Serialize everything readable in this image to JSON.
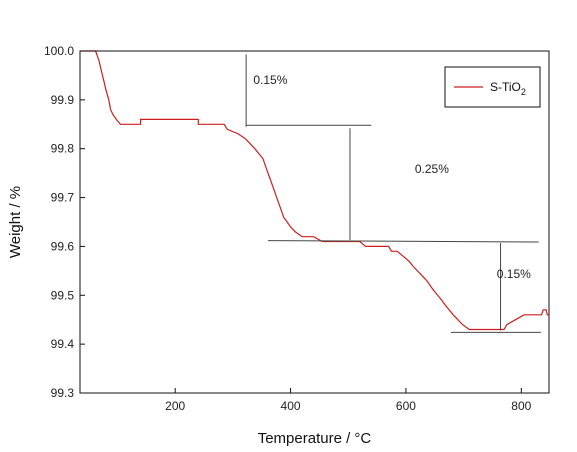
{
  "chart_data": {
    "type": "line",
    "xlabel": "Temperature / °C",
    "ylabel": "Weight  /  %",
    "xlim": [
      35,
      848
    ],
    "ylim": [
      99.3,
      100.0
    ],
    "x_ticks": [
      "200",
      "400",
      "600",
      "800"
    ],
    "y_ticks": [
      "100.0",
      "99.9",
      "99.8",
      "99.7",
      "99.6",
      "99.5",
      "99.4",
      "99.3"
    ],
    "x_tick_values": [
      200,
      400,
      600,
      800
    ],
    "y_tick_values": [
      100.0,
      99.9,
      99.8,
      99.7,
      99.6,
      99.5,
      99.4,
      99.3
    ],
    "grid": false,
    "legend": {
      "position": "top-right",
      "entries": [
        {
          "prefix": "S-TiO",
          "sub": "2"
        }
      ]
    },
    "series": [
      {
        "name": "S-TiO2",
        "color": "#cc1f1f",
        "points": [
          [
            35,
            100.0
          ],
          [
            62,
            100.0
          ],
          [
            68,
            99.98
          ],
          [
            72,
            99.96
          ],
          [
            76,
            99.94
          ],
          [
            80,
            99.92
          ],
          [
            85,
            99.9
          ],
          [
            88,
            99.88
          ],
          [
            92,
            99.87
          ],
          [
            98,
            99.86
          ],
          [
            105,
            99.85
          ],
          [
            140,
            99.85
          ],
          [
            140,
            99.86
          ],
          [
            240,
            99.86
          ],
          [
            240,
            99.85
          ],
          [
            285,
            99.85
          ],
          [
            290,
            99.84
          ],
          [
            310,
            99.83
          ],
          [
            322,
            99.82
          ],
          [
            330,
            99.81
          ],
          [
            338,
            99.8
          ],
          [
            345,
            99.79
          ],
          [
            352,
            99.78
          ],
          [
            358,
            99.76
          ],
          [
            364,
            99.74
          ],
          [
            370,
            99.72
          ],
          [
            376,
            99.7
          ],
          [
            382,
            99.68
          ],
          [
            388,
            99.66
          ],
          [
            394,
            99.65
          ],
          [
            400,
            99.64
          ],
          [
            408,
            99.63
          ],
          [
            420,
            99.62
          ],
          [
            440,
            99.62
          ],
          [
            455,
            99.61
          ],
          [
            520,
            99.61
          ],
          [
            530,
            99.6
          ],
          [
            570,
            99.6
          ],
          [
            575,
            99.59
          ],
          [
            585,
            99.59
          ],
          [
            595,
            99.58
          ],
          [
            605,
            99.57
          ],
          [
            612,
            99.56
          ],
          [
            620,
            99.55
          ],
          [
            628,
            99.54
          ],
          [
            636,
            99.53
          ],
          [
            642,
            99.52
          ],
          [
            648,
            99.51
          ],
          [
            655,
            99.5
          ],
          [
            662,
            99.49
          ],
          [
            668,
            99.48
          ],
          [
            675,
            99.47
          ],
          [
            682,
            99.46
          ],
          [
            690,
            99.45
          ],
          [
            698,
            99.44
          ],
          [
            710,
            99.43
          ],
          [
            770,
            99.43
          ],
          [
            775,
            99.44
          ],
          [
            790,
            99.45
          ],
          [
            805,
            99.46
          ],
          [
            835,
            99.46
          ],
          [
            838,
            99.47
          ],
          [
            843,
            99.47
          ],
          [
            845,
            99.46
          ],
          [
            848,
            99.46
          ]
        ]
      }
    ],
    "annotations": [
      {
        "text": "0.15%",
        "x": 365,
        "y": 99.932
      },
      {
        "text": "0.25%",
        "x": 645,
        "y": 99.75
      },
      {
        "text": "0.15%",
        "x": 787,
        "y": 99.535
      }
    ],
    "reference_lines": [
      {
        "x1": 323,
        "y1": 99.993,
        "x2": 323,
        "y2": 99.845
      },
      {
        "x1": 322,
        "y1": 99.848,
        "x2": 540,
        "y2": 99.848
      },
      {
        "x1": 503,
        "y1": 99.842,
        "x2": 503,
        "y2": 99.613
      },
      {
        "x1": 361,
        "y1": 99.612,
        "x2": 830,
        "y2": 99.609
      },
      {
        "x1": 764,
        "y1": 99.607,
        "x2": 764,
        "y2": 99.428
      },
      {
        "x1": 678,
        "y1": 99.424,
        "x2": 834,
        "y2": 99.424
      }
    ]
  }
}
